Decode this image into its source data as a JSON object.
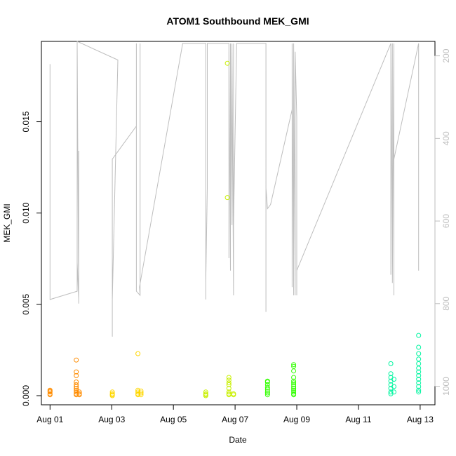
{
  "chart_data": {
    "type": "scatter",
    "title": "ATOM1 Southbound MEK_GMI",
    "xlabel": "Date",
    "ylabel": "MEK_GMI",
    "x_ticks": [
      {
        "day": 1,
        "label": "Aug 01"
      },
      {
        "day": 3,
        "label": "Aug 03"
      },
      {
        "day": 5,
        "label": "Aug 05"
      },
      {
        "day": 7,
        "label": "Aug 07"
      },
      {
        "day": 9,
        "label": "Aug 09"
      },
      {
        "day": 11,
        "label": "Aug 11"
      },
      {
        "day": 13,
        "label": "Aug 13"
      }
    ],
    "xlim": [
      0.72,
      13.48
    ],
    "y_ticks": [
      0.0,
      0.005,
      0.01,
      0.015
    ],
    "y_tick_labels": [
      "0.000",
      "0.005",
      "0.010",
      "0.015"
    ],
    "ylim": [
      -0.0005,
      0.0194
    ],
    "y2_ticks": [
      200,
      400,
      600,
      800,
      1000
    ],
    "y2_tick_labels": [
      "200",
      "400",
      "600",
      "800",
      "1000"
    ],
    "y2lim": [
      1045,
      165
    ],
    "y2_color": "#bebebe",
    "overlay_color": "#bebebe",
    "grid": false,
    "legend": "none",
    "series": [
      {
        "color": "#ff8c00",
        "points": [
          [
            1.0,
            0.0003
          ],
          [
            1.0,
            0.0002
          ],
          [
            1.0,
            0.0001
          ],
          [
            1.0,
            5e-05
          ],
          [
            1.0,
            0.00025
          ],
          [
            1.85,
            0.00195
          ],
          [
            1.85,
            0.0013
          ],
          [
            1.85,
            0.0011
          ],
          [
            1.85,
            0.00075
          ],
          [
            1.85,
            0.0006
          ],
          [
            1.85,
            0.0005
          ],
          [
            1.85,
            0.0004
          ],
          [
            1.85,
            0.0003
          ],
          [
            1.85,
            0.0002
          ],
          [
            1.85,
            0.0001
          ],
          [
            1.85,
            5e-05
          ],
          [
            1.95,
            0.0002
          ],
          [
            1.95,
            0.0001
          ],
          [
            1.95,
            5e-05
          ]
        ]
      },
      {
        "color": "#ffd700",
        "points": [
          [
            3.02,
            0.0002
          ],
          [
            3.02,
            0.0001
          ],
          [
            3.02,
            5e-05
          ],
          [
            3.02,
            0.0
          ],
          [
            3.85,
            0.0023
          ],
          [
            3.85,
            0.0003
          ],
          [
            3.85,
            0.0002
          ],
          [
            3.85,
            0.0001
          ],
          [
            3.85,
            5e-05
          ],
          [
            3.95,
            0.00025
          ],
          [
            3.95,
            0.00015
          ],
          [
            3.95,
            5e-05
          ]
        ]
      },
      {
        "color": "#c8f000",
        "points": [
          [
            6.05,
            0.0002
          ],
          [
            6.05,
            0.0001
          ],
          [
            6.05,
            5e-05
          ],
          [
            6.05,
            0.0
          ],
          [
            6.75,
            0.0182
          ],
          [
            6.75,
            0.01085
          ],
          [
            6.8,
            0.001
          ],
          [
            6.8,
            0.00085
          ],
          [
            6.8,
            0.0007
          ],
          [
            6.8,
            0.0006
          ],
          [
            6.8,
            0.0004
          ],
          [
            6.8,
            0.0002
          ],
          [
            6.8,
            0.0001
          ],
          [
            6.8,
            5e-05
          ],
          [
            6.95,
            0.0001
          ],
          [
            6.95,
            5e-05
          ]
        ]
      },
      {
        "color": "#32ff00",
        "points": [
          [
            8.05,
            0.0008
          ],
          [
            8.05,
            0.00075
          ],
          [
            8.05,
            0.0006
          ],
          [
            8.05,
            0.00045
          ],
          [
            8.05,
            0.00035
          ],
          [
            8.05,
            0.00025
          ],
          [
            8.05,
            0.00015
          ],
          [
            8.05,
            5e-05
          ],
          [
            8.9,
            0.0017
          ],
          [
            8.9,
            0.0016
          ],
          [
            8.9,
            0.00135
          ],
          [
            8.9,
            0.001
          ],
          [
            8.9,
            0.0008
          ],
          [
            8.9,
            0.0007
          ],
          [
            8.9,
            0.0006
          ],
          [
            8.9,
            0.0005
          ],
          [
            8.9,
            0.0004
          ],
          [
            8.9,
            0.0003
          ],
          [
            8.9,
            0.0002
          ],
          [
            8.9,
            0.0001
          ],
          [
            8.9,
            5e-05
          ]
        ]
      },
      {
        "color": "#00f5a0",
        "points": [
          [
            12.05,
            0.00175
          ],
          [
            12.05,
            0.0012
          ],
          [
            12.05,
            0.001
          ],
          [
            12.05,
            0.0008
          ],
          [
            12.05,
            0.0006
          ],
          [
            12.05,
            0.0004
          ],
          [
            12.05,
            0.0002
          ],
          [
            12.05,
            0.0001
          ],
          [
            12.15,
            0.0009
          ],
          [
            12.15,
            0.0005
          ],
          [
            12.15,
            0.0002
          ],
          [
            12.95,
            0.0033
          ],
          [
            12.95,
            0.00265
          ],
          [
            12.95,
            0.0023
          ],
          [
            12.95,
            0.002
          ],
          [
            12.95,
            0.00175
          ],
          [
            12.95,
            0.0015
          ],
          [
            12.95,
            0.0013
          ],
          [
            12.95,
            0.0011
          ],
          [
            12.95,
            0.0009
          ],
          [
            12.95,
            0.0007
          ],
          [
            12.95,
            0.0005
          ],
          [
            12.95,
            0.0003
          ],
          [
            12.95,
            0.0002
          ]
        ]
      }
    ],
    "overlay_line": [
      [
        1.0,
        660
      ],
      [
        1.0,
        220
      ],
      [
        1.0,
        790
      ],
      [
        1.88,
        770
      ],
      [
        1.88,
        110
      ],
      [
        1.88,
        700
      ],
      [
        1.93,
        790
      ],
      [
        1.93,
        430
      ],
      [
        1.93,
        680
      ],
      [
        1.93,
        800
      ],
      [
        1.88,
        110
      ],
      [
        3.2,
        210
      ],
      [
        3.02,
        790
      ],
      [
        3.02,
        880
      ],
      [
        3.02,
        450
      ],
      [
        3.8,
        370
      ],
      [
        3.8,
        170
      ],
      [
        3.8,
        620
      ],
      [
        3.8,
        770
      ],
      [
        3.92,
        780
      ],
      [
        3.92,
        170
      ],
      [
        3.92,
        620
      ],
      [
        3.92,
        780
      ],
      [
        3.9,
        760
      ],
      [
        5.3,
        170
      ],
      [
        6.05,
        170
      ],
      [
        6.05,
        790
      ],
      [
        6.05,
        460
      ],
      [
        6.05,
        170
      ],
      [
        6.05,
        750
      ],
      [
        6.1,
        520
      ],
      [
        6.1,
        170
      ],
      [
        6.8,
        170
      ],
      [
        6.8,
        690
      ],
      [
        6.8,
        460
      ],
      [
        6.8,
        170
      ],
      [
        6.85,
        720
      ],
      [
        6.85,
        170
      ],
      [
        6.9,
        610
      ],
      [
        6.9,
        170
      ],
      [
        6.95,
        780
      ],
      [
        6.95,
        170
      ],
      [
        6.95,
        610
      ],
      [
        7.05,
        170
      ],
      [
        8.0,
        170
      ],
      [
        8.0,
        300
      ],
      [
        8.0,
        820
      ],
      [
        8.0,
        520
      ],
      [
        8.05,
        570
      ],
      [
        8.15,
        560
      ],
      [
        8.85,
        330
      ],
      [
        8.85,
        760
      ],
      [
        8.85,
        170
      ],
      [
        8.9,
        780
      ],
      [
        8.9,
        170
      ],
      [
        8.95,
        780
      ],
      [
        8.95,
        190
      ],
      [
        9.0,
        350
      ],
      [
        9.0,
        780
      ],
      [
        9.0,
        720
      ],
      [
        12.05,
        170
      ],
      [
        12.05,
        730
      ],
      [
        12.1,
        170
      ],
      [
        12.1,
        750
      ],
      [
        12.15,
        170
      ],
      [
        12.15,
        780
      ],
      [
        12.15,
        450
      ],
      [
        12.95,
        170
      ],
      [
        12.95,
        720
      ],
      [
        12.95,
        170
      ]
    ]
  }
}
